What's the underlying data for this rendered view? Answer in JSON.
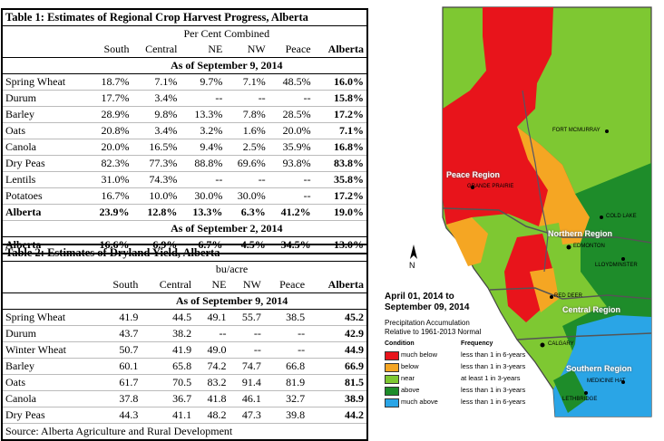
{
  "table1": {
    "title": "Table 1: Estimates of Regional Crop Harvest Progress, Alberta",
    "subheader": "Per Cent Combined",
    "columns": [
      "South",
      "Central",
      "NE",
      "NW",
      "Peace",
      "Alberta"
    ],
    "asof1": "As of September 9, 2014",
    "rows": [
      {
        "label": "Spring Wheat",
        "vals": [
          "18.7%",
          "7.1%",
          "9.7%",
          "7.1%",
          "48.5%",
          "16.0%"
        ]
      },
      {
        "label": "Durum",
        "vals": [
          "17.7%",
          "3.4%",
          "--",
          "--",
          "--",
          "15.8%"
        ]
      },
      {
        "label": "Barley",
        "vals": [
          "28.9%",
          "9.8%",
          "13.3%",
          "7.8%",
          "28.5%",
          "17.2%"
        ]
      },
      {
        "label": "Oats",
        "vals": [
          "20.8%",
          "3.4%",
          "3.2%",
          "1.6%",
          "20.0%",
          "7.1%"
        ]
      },
      {
        "label": "Canola",
        "vals": [
          "20.0%",
          "16.5%",
          "9.4%",
          "2.5%",
          "35.9%",
          "16.8%"
        ]
      },
      {
        "label": "Dry Peas",
        "vals": [
          "82.3%",
          "77.3%",
          "88.8%",
          "69.6%",
          "93.8%",
          "83.8%"
        ]
      },
      {
        "label": "Lentils",
        "vals": [
          "31.0%",
          "74.3%",
          "--",
          "--",
          "--",
          "35.8%"
        ]
      },
      {
        "label": "Potatoes",
        "vals": [
          "16.7%",
          "10.0%",
          "30.0%",
          "30.0%",
          "--",
          "17.2%"
        ]
      }
    ],
    "total1": {
      "label": "Alberta",
      "vals": [
        "23.9%",
        "12.8%",
        "13.3%",
        "6.3%",
        "41.2%",
        "19.0%"
      ]
    },
    "asof2": "As of September 2, 2014",
    "total2": {
      "label": "Alberta",
      "vals": [
        "16.6%",
        "6.9%",
        "6.7%",
        "4.5%",
        "34.5%",
        "13.0%"
      ]
    }
  },
  "table2": {
    "title": "Table 2: Estimates of Dryland Yield, Alberta",
    "subheader": "bu/acre",
    "columns": [
      "South",
      "Central",
      "NE",
      "NW",
      "Peace",
      "Alberta"
    ],
    "asof": "As of September 9, 2014",
    "rows": [
      {
        "label": "Spring Wheat",
        "vals": [
          "41.9",
          "44.5",
          "49.1",
          "55.7",
          "38.5",
          "45.2"
        ]
      },
      {
        "label": "Durum",
        "vals": [
          "43.7",
          "38.2",
          "--",
          "--",
          "--",
          "42.9"
        ]
      },
      {
        "label": "Winter Wheat",
        "vals": [
          "50.7",
          "41.9",
          "49.0",
          "--",
          "--",
          "44.9"
        ]
      },
      {
        "label": "Barley",
        "vals": [
          "60.1",
          "65.8",
          "74.2",
          "74.7",
          "66.8",
          "66.9"
        ]
      },
      {
        "label": "Oats",
        "vals": [
          "61.7",
          "70.5",
          "83.2",
          "91.4",
          "81.9",
          "81.5"
        ]
      },
      {
        "label": "Canola",
        "vals": [
          "37.8",
          "36.7",
          "41.8",
          "46.1",
          "32.7",
          "38.9"
        ]
      },
      {
        "label": "Dry Peas",
        "vals": [
          "44.3",
          "41.1",
          "48.2",
          "47.3",
          "39.8",
          "44.2"
        ]
      }
    ],
    "source": "Source: Alberta Agriculture and Rural Development"
  },
  "map": {
    "title_line1": "April 01, 2014 to",
    "title_line2": "September 09, 2014",
    "subtitle_line1": "Precipitation Accumulation",
    "subtitle_line2": "Relative to 1961-2013 Normal",
    "legend_head_condition": "Condition",
    "legend_head_frequency": "Frequency",
    "legend": [
      {
        "condition": "much below",
        "frequency": "less than 1 in 6-years",
        "color": "#e8141b"
      },
      {
        "condition": "below",
        "frequency": "less than 1 in 3-years",
        "color": "#f5a623"
      },
      {
        "condition": "near",
        "frequency": "at least 1 in 3-years",
        "color": "#7ec832"
      },
      {
        "condition": "above",
        "frequency": "less than 1 in 3-years",
        "color": "#1e8c2a"
      },
      {
        "condition": "much above",
        "frequency": "less than 1 in 6-years",
        "color": "#2aa5e6"
      }
    ],
    "regions": {
      "peace": "Peace Region",
      "northern": "Northern Region",
      "central": "Central Region",
      "southern": "Southern Region"
    },
    "cities": {
      "fort_mcmurray": "FORT MCMURRAY",
      "grande_prairie": "GRANDE PRAIRIE",
      "cold_lake": "COLD LAKE",
      "edmonton": "EDMONTON",
      "lloydminster": "LLOYDMINSTER",
      "red_deer": "RED DEER",
      "calgary": "CALGARY",
      "medicine_hat": "MEDICINE HAT",
      "lethbridge": "LETHBRIDGE"
    },
    "north_label": "N"
  }
}
